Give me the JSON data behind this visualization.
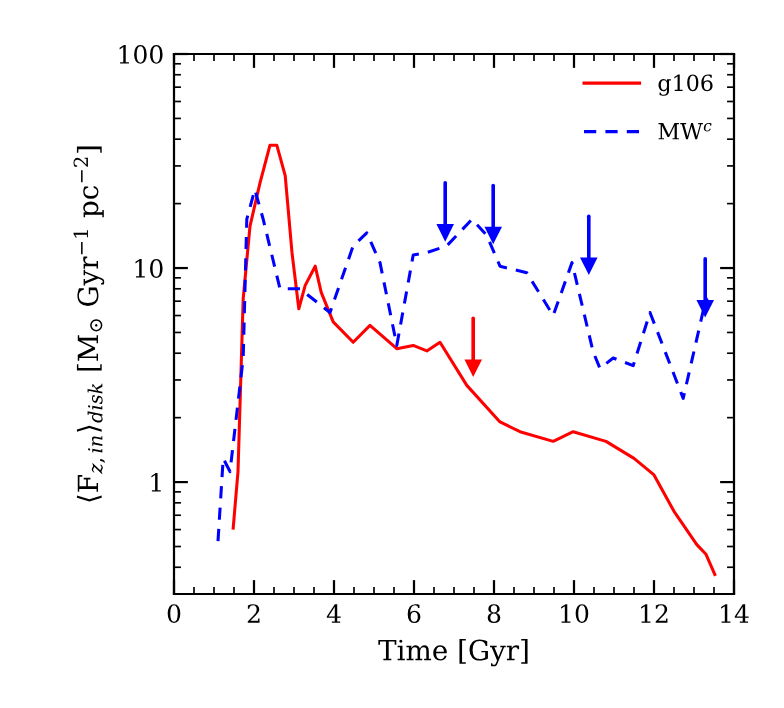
{
  "chart_data": {
    "type": "line",
    "xlabel": "Time [Gyr]",
    "ylabel": "⟨F$_{z,in}$⟩$_{disk}$ [M$_{⊙}$ Gyr$^{−1}$ pc$^{−2}$]",
    "log": "y",
    "xlim": [
      0,
      14
    ],
    "ylim": [
      0.3,
      100
    ],
    "xticks": [
      0,
      2,
      4,
      6,
      8,
      10,
      12,
      14
    ],
    "yticks": [
      1,
      10,
      100
    ],
    "grid": false,
    "legend": "top right",
    "series": [
      {
        "name": "g106",
        "color": "#ff0000",
        "line_style": "solid",
        "x": [
          1.48,
          1.6,
          1.73,
          1.9,
          2.15,
          2.4,
          2.57,
          2.78,
          2.95,
          3.12,
          3.28,
          3.53,
          3.68,
          3.98,
          4.48,
          4.9,
          5.57,
          5.98,
          6.32,
          6.65,
          7.32,
          8.15,
          8.65,
          9.48,
          9.98,
          10.8,
          11.5,
          12.0,
          12.5,
          13.07,
          13.3,
          13.52
        ],
        "values": [
          0.61,
          1.12,
          7.2,
          15.7,
          25,
          37.5,
          37.5,
          27,
          11.8,
          6.45,
          8.3,
          10.2,
          7.7,
          5.6,
          4.5,
          5.4,
          4.2,
          4.35,
          4.1,
          4.5,
          2.83,
          1.91,
          1.72,
          1.55,
          1.72,
          1.55,
          1.29,
          1.08,
          0.73,
          0.51,
          0.46,
          0.37
        ]
      },
      {
        "name": "MW$^{c}$",
        "color": "#0000ff",
        "line_style": "dashed",
        "x": [
          1.1,
          1.23,
          1.4,
          1.73,
          1.82,
          2.02,
          2.23,
          2.65,
          3.15,
          3.9,
          4.48,
          4.82,
          5.15,
          5.57,
          5.98,
          6.32,
          6.82,
          7.45,
          7.82,
          8.15,
          8.82,
          9.48,
          9.95,
          10.48,
          10.65,
          10.98,
          11.48,
          11.9,
          12.73,
          13.3,
          13.4
        ],
        "values": [
          0.53,
          1.29,
          1.12,
          3.8,
          16.9,
          23.3,
          16.9,
          8,
          8,
          6.2,
          12.7,
          14.6,
          10.6,
          4.35,
          11.5,
          11.8,
          12.7,
          16.9,
          14.2,
          10.2,
          9.5,
          6.0,
          10.6,
          4.05,
          3.4,
          3.8,
          3.5,
          6.2,
          2.46,
          7.2,
          6.7
        ]
      },
      {
        "type": "scatter",
        "marker": "triangle",
        "color": "#ff0000",
        "x": [
          7.48
        ],
        "values": [
          3.4
        ]
      },
      {
        "type": "scatter",
        "marker": "triangle",
        "color": "#0000ff",
        "x": [
          6.78,
          7.98,
          10.37,
          13.28
        ],
        "values": [
          14.6,
          14.2,
          10.2,
          6.45
        ]
      }
    ]
  }
}
